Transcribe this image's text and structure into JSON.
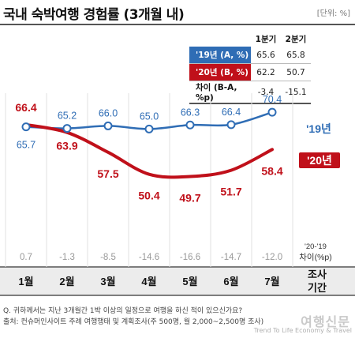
{
  "header": {
    "title": "국내 숙박여행 경험률 (3개월 내)",
    "unit": "[단위: %]"
  },
  "summary_table": {
    "columns": [
      "1분기",
      "2분기"
    ],
    "rows": [
      {
        "label": "'19년 (A, %)",
        "values": [
          "65.6",
          "65.8"
        ]
      },
      {
        "label": "'20년 (B, %)",
        "values": [
          "62.2",
          "50.7"
        ]
      },
      {
        "label": "차이 (B-A, %p)",
        "values": [
          "-3.4",
          "-15.1"
        ]
      }
    ]
  },
  "labels": {
    "badge_2019": "'19년",
    "badge_2020": "'20년",
    "diff_caption_line1": "'20-'19",
    "diff_caption_line2": "차이(%p)",
    "period_line1": "조사",
    "period_line2": "기간"
  },
  "colors": {
    "series_2019": "#2f6db5",
    "series_2020": "#c0101a",
    "diff_text": "#999999"
  },
  "chart_data": {
    "type": "line",
    "title": "국내 숙박여행 경험률 (3개월 내)",
    "categories": [
      "1월",
      "2월",
      "3월",
      "4월",
      "5월",
      "6월",
      "7월"
    ],
    "series": [
      {
        "name": "'19년",
        "values": [
          65.7,
          65.2,
          66.0,
          65.0,
          66.3,
          66.4,
          70.4
        ]
      },
      {
        "name": "'20년",
        "values": [
          66.4,
          63.9,
          57.5,
          50.4,
          49.7,
          51.7,
          58.4
        ]
      }
    ],
    "differences": [
      "0.7",
      "-1.3",
      "-8.5",
      "-14.6",
      "-16.6",
      "-14.7",
      "-12.0"
    ],
    "ylim": [
      46,
      74
    ]
  },
  "footer": {
    "line1": "Q. 귀하께서는 지난 3개월간 1박 이상의 일정으로 여행을 하신 적이 있으신가요?",
    "line2": "출처: 컨슈머인사이트 주례 여행행태 및 계획조사(주 500명, 월 2,000~2,500명 조사)",
    "watermark": "여행신문",
    "watermark_sub": "Trend To Life Economy & Travel"
  }
}
